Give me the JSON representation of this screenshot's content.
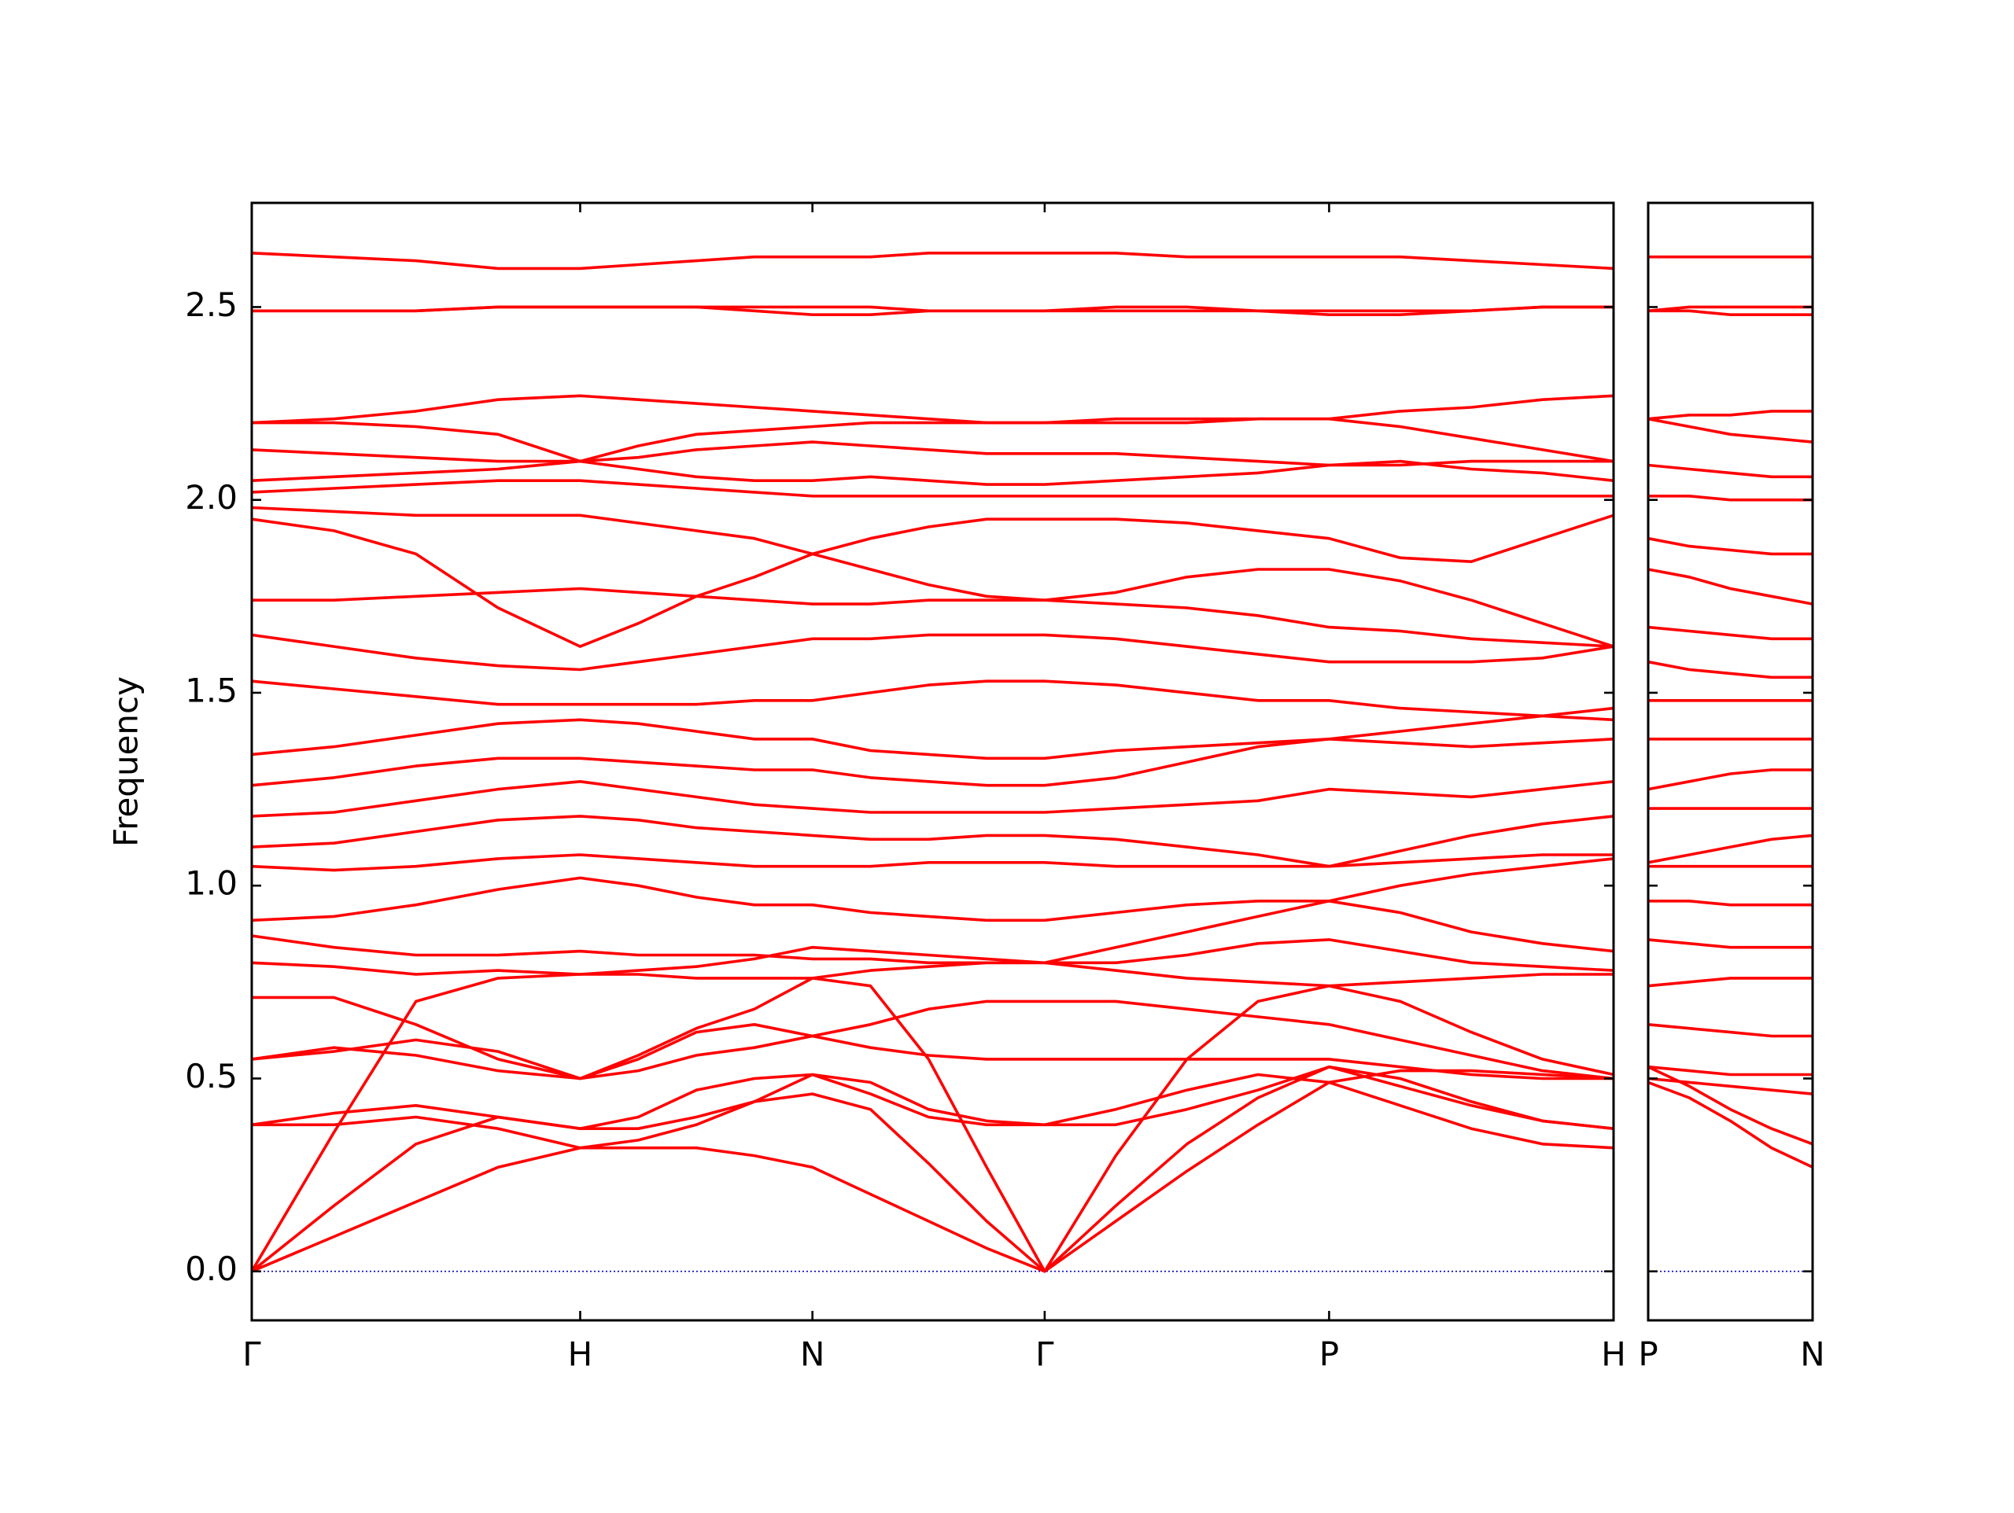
{
  "chart_data": [
    {
      "type": "line",
      "y_label": "Frequency",
      "color": "#ff0000",
      "hline": 0,
      "hline_color": "#0000cc",
      "xlim": [
        0,
        4.1463
      ],
      "ylim": [
        -0.127,
        2.77
      ],
      "xticks": [
        {
          "value": 0,
          "label": "Γ"
        },
        {
          "value": 1,
          "label": "H"
        },
        {
          "value": 1.7071,
          "label": "N"
        },
        {
          "value": 2.4142,
          "label": "Γ"
        },
        {
          "value": 3.2802,
          "label": "P"
        },
        {
          "value": 4.1463,
          "label": "H"
        }
      ],
      "yticks": [
        {
          "value": 0,
          "label": "0.0"
        },
        0.5,
        {
          "value": 1,
          "label": "1.0"
        },
        1.5,
        {
          "value": 2,
          "label": "2.0"
        },
        2.5
      ],
      "x": [
        0,
        0.25,
        0.5,
        0.75,
        1,
        1.1768,
        1.3536,
        1.5303,
        1.7071,
        1.8839,
        2.0607,
        2.2374,
        2.4142,
        2.6307,
        2.8472,
        3.0637,
        3.2802,
        3.4967,
        3.7132,
        3.9298,
        4.1463
      ],
      "series": [
        {
          "values": [
            0,
            0.09,
            0.18,
            0.27,
            0.32,
            0.32,
            0.32,
            0.3,
            0.27,
            0.2,
            0.13,
            0.06,
            0,
            0.13,
            0.26,
            0.38,
            0.49,
            0.43,
            0.37,
            0.33,
            0.32
          ]
        },
        {
          "values": [
            0,
            0.17,
            0.33,
            0.4,
            0.37,
            0.37,
            0.4,
            0.44,
            0.46,
            0.42,
            0.28,
            0.13,
            0,
            0.17,
            0.33,
            0.45,
            0.53,
            0.48,
            0.43,
            0.39,
            0.37
          ]
        },
        {
          "values": [
            0,
            0.36,
            0.7,
            0.76,
            0.77,
            0.77,
            0.76,
            0.76,
            0.76,
            0.74,
            0.55,
            0.27,
            0,
            0.3,
            0.55,
            0.7,
            0.74,
            0.75,
            0.76,
            0.77,
            0.77
          ]
        },
        {
          "values": [
            0.38,
            0.38,
            0.4,
            0.37,
            0.32,
            0.34,
            0.38,
            0.44,
            0.51,
            0.46,
            0.4,
            0.38,
            0.38,
            0.38,
            0.42,
            0.47,
            0.53,
            0.5,
            0.44,
            0.39,
            0.37
          ]
        },
        {
          "values": [
            0.38,
            0.41,
            0.43,
            0.4,
            0.37,
            0.4,
            0.47,
            0.5,
            0.51,
            0.49,
            0.42,
            0.39,
            0.38,
            0.42,
            0.47,
            0.51,
            0.49,
            0.52,
            0.52,
            0.51,
            0.5
          ]
        },
        {
          "values": [
            0.55,
            0.57,
            0.6,
            0.57,
            0.5,
            0.52,
            0.56,
            0.58,
            0.61,
            0.58,
            0.56,
            0.55,
            0.55,
            0.55,
            0.55,
            0.55,
            0.55,
            0.53,
            0.51,
            0.5,
            0.5
          ]
        },
        {
          "values": [
            0.55,
            0.58,
            0.56,
            0.52,
            0.5,
            0.55,
            0.62,
            0.64,
            0.61,
            0.64,
            0.68,
            0.7,
            0.7,
            0.7,
            0.68,
            0.66,
            0.64,
            0.6,
            0.56,
            0.52,
            0.5
          ]
        },
        {
          "values": [
            0.71,
            0.71,
            0.64,
            0.55,
            0.5,
            0.56,
            0.63,
            0.68,
            0.76,
            0.78,
            0.79,
            0.8,
            0.8,
            0.78,
            0.76,
            0.75,
            0.74,
            0.7,
            0.62,
            0.55,
            0.51
          ]
        },
        {
          "values": [
            0.8,
            0.79,
            0.77,
            0.78,
            0.77,
            0.78,
            0.79,
            0.81,
            0.84,
            0.83,
            0.82,
            0.81,
            0.8,
            0.8,
            0.82,
            0.85,
            0.86,
            0.83,
            0.8,
            0.79,
            0.78
          ]
        },
        {
          "values": [
            0.87,
            0.84,
            0.82,
            0.82,
            0.83,
            0.82,
            0.82,
            0.82,
            0.81,
            0.81,
            0.8,
            0.8,
            0.8,
            0.84,
            0.88,
            0.92,
            0.96,
            0.93,
            0.88,
            0.85,
            0.83
          ]
        },
        {
          "values": [
            0.91,
            0.92,
            0.95,
            0.99,
            1.02,
            1.0,
            0.97,
            0.95,
            0.95,
            0.93,
            0.92,
            0.91,
            0.91,
            0.93,
            0.95,
            0.96,
            0.96,
            1.0,
            1.03,
            1.05,
            1.07
          ]
        },
        {
          "values": [
            1.05,
            1.04,
            1.05,
            1.07,
            1.08,
            1.07,
            1.06,
            1.05,
            1.05,
            1.05,
            1.06,
            1.06,
            1.06,
            1.05,
            1.05,
            1.05,
            1.05,
            1.06,
            1.07,
            1.08,
            1.08
          ]
        },
        {
          "values": [
            1.1,
            1.11,
            1.14,
            1.17,
            1.18,
            1.17,
            1.15,
            1.14,
            1.13,
            1.12,
            1.12,
            1.13,
            1.13,
            1.12,
            1.1,
            1.08,
            1.05,
            1.09,
            1.13,
            1.16,
            1.18
          ]
        },
        {
          "values": [
            1.18,
            1.19,
            1.22,
            1.25,
            1.27,
            1.25,
            1.23,
            1.21,
            1.2,
            1.19,
            1.19,
            1.19,
            1.19,
            1.2,
            1.21,
            1.22,
            1.25,
            1.24,
            1.23,
            1.25,
            1.27
          ]
        },
        {
          "values": [
            1.26,
            1.28,
            1.31,
            1.33,
            1.33,
            1.32,
            1.31,
            1.3,
            1.3,
            1.28,
            1.27,
            1.26,
            1.26,
            1.28,
            1.32,
            1.36,
            1.38,
            1.37,
            1.36,
            1.37,
            1.38
          ]
        },
        {
          "values": [
            1.34,
            1.36,
            1.39,
            1.42,
            1.43,
            1.42,
            1.4,
            1.38,
            1.38,
            1.35,
            1.34,
            1.33,
            1.33,
            1.35,
            1.36,
            1.37,
            1.38,
            1.4,
            1.42,
            1.44,
            1.46
          ]
        },
        {
          "values": [
            1.53,
            1.51,
            1.49,
            1.47,
            1.47,
            1.47,
            1.47,
            1.48,
            1.48,
            1.5,
            1.52,
            1.53,
            1.53,
            1.52,
            1.5,
            1.48,
            1.48,
            1.46,
            1.45,
            1.44,
            1.43
          ]
        },
        {
          "values": [
            1.65,
            1.62,
            1.59,
            1.57,
            1.56,
            1.58,
            1.6,
            1.62,
            1.64,
            1.64,
            1.65,
            1.65,
            1.65,
            1.64,
            1.62,
            1.6,
            1.58,
            1.58,
            1.58,
            1.59,
            1.62
          ]
        },
        {
          "values": [
            1.74,
            1.74,
            1.75,
            1.76,
            1.77,
            1.76,
            1.75,
            1.74,
            1.73,
            1.73,
            1.74,
            1.74,
            1.74,
            1.73,
            1.72,
            1.7,
            1.67,
            1.66,
            1.64,
            1.63,
            1.62
          ]
        },
        {
          "values": [
            1.95,
            1.92,
            1.86,
            1.72,
            1.62,
            1.68,
            1.75,
            1.8,
            1.86,
            1.82,
            1.78,
            1.75,
            1.74,
            1.76,
            1.8,
            1.82,
            1.82,
            1.79,
            1.74,
            1.68,
            1.62
          ]
        },
        {
          "values": [
            1.98,
            1.97,
            1.96,
            1.96,
            1.96,
            1.94,
            1.92,
            1.9,
            1.86,
            1.9,
            1.93,
            1.95,
            1.95,
            1.95,
            1.94,
            1.92,
            1.9,
            1.85,
            1.84,
            1.9,
            1.96
          ]
        },
        {
          "values": [
            2.02,
            2.03,
            2.04,
            2.05,
            2.05,
            2.04,
            2.03,
            2.02,
            2.01,
            2.01,
            2.01,
            2.01,
            2.01,
            2.01,
            2.01,
            2.01,
            2.01,
            2.01,
            2.01,
            2.01,
            2.01
          ]
        },
        {
          "values": [
            2.05,
            2.06,
            2.07,
            2.08,
            2.1,
            2.08,
            2.06,
            2.05,
            2.05,
            2.06,
            2.05,
            2.04,
            2.04,
            2.05,
            2.06,
            2.07,
            2.09,
            2.1,
            2.08,
            2.07,
            2.05
          ]
        },
        {
          "values": [
            2.13,
            2.12,
            2.11,
            2.1,
            2.1,
            2.11,
            2.13,
            2.14,
            2.15,
            2.14,
            2.13,
            2.12,
            2.12,
            2.12,
            2.11,
            2.1,
            2.09,
            2.09,
            2.1,
            2.1,
            2.1
          ]
        },
        {
          "values": [
            2.2,
            2.2,
            2.19,
            2.17,
            2.1,
            2.14,
            2.17,
            2.18,
            2.19,
            2.2,
            2.2,
            2.2,
            2.2,
            2.2,
            2.2,
            2.21,
            2.21,
            2.19,
            2.16,
            2.13,
            2.1
          ]
        },
        {
          "values": [
            2.2,
            2.21,
            2.23,
            2.26,
            2.27,
            2.26,
            2.25,
            2.24,
            2.23,
            2.22,
            2.21,
            2.2,
            2.2,
            2.21,
            2.21,
            2.21,
            2.21,
            2.23,
            2.24,
            2.26,
            2.27
          ]
        },
        {
          "values": [
            2.49,
            2.49,
            2.49,
            2.5,
            2.5,
            2.5,
            2.5,
            2.49,
            2.48,
            2.48,
            2.49,
            2.49,
            2.49,
            2.49,
            2.49,
            2.49,
            2.49,
            2.49,
            2.49,
            2.5,
            2.5
          ]
        },
        {
          "values": [
            2.49,
            2.49,
            2.49,
            2.5,
            2.5,
            2.5,
            2.5,
            2.5,
            2.5,
            2.5,
            2.49,
            2.49,
            2.49,
            2.5,
            2.5,
            2.49,
            2.48,
            2.48,
            2.49,
            2.5,
            2.5
          ]
        },
        {
          "values": [
            2.64,
            2.63,
            2.62,
            2.6,
            2.6,
            2.61,
            2.62,
            2.63,
            2.63,
            2.63,
            2.64,
            2.64,
            2.64,
            2.64,
            2.63,
            2.63,
            2.63,
            2.63,
            2.62,
            2.61,
            2.6
          ]
        }
      ]
    },
    {
      "type": "line",
      "color": "#ff0000",
      "hline": 0,
      "hline_color": "#0000cc",
      "xlim": [
        0,
        0.5
      ],
      "ylim": [
        -0.127,
        2.77
      ],
      "xticks": [
        {
          "value": 0,
          "label": "P"
        },
        {
          "value": 0.5,
          "label": "N"
        }
      ],
      "x": [
        0,
        0.125,
        0.25,
        0.375,
        0.5
      ],
      "series": [
        {
          "values": [
            0.49,
            0.45,
            0.39,
            0.32,
            0.27
          ]
        },
        {
          "values": [
            0.53,
            0.48,
            0.42,
            0.37,
            0.33
          ]
        },
        {
          "values": [
            0.5,
            0.49,
            0.48,
            0.47,
            0.46
          ]
        },
        {
          "values": [
            0.53,
            0.52,
            0.51,
            0.51,
            0.51
          ]
        },
        {
          "values": [
            0.64,
            0.63,
            0.62,
            0.61,
            0.61
          ]
        },
        {
          "values": [
            0.74,
            0.75,
            0.76,
            0.76,
            0.76
          ]
        },
        {
          "values": [
            0.86,
            0.85,
            0.84,
            0.84,
            0.84
          ]
        },
        {
          "values": [
            0.96,
            0.96,
            0.95,
            0.95,
            0.95
          ]
        },
        {
          "values": [
            1.05,
            1.05,
            1.05,
            1.05,
            1.05
          ]
        },
        {
          "values": [
            1.06,
            1.08,
            1.1,
            1.12,
            1.13
          ]
        },
        {
          "values": [
            1.2,
            1.2,
            1.2,
            1.2,
            1.2
          ]
        },
        {
          "values": [
            1.25,
            1.27,
            1.29,
            1.3,
            1.3
          ]
        },
        {
          "values": [
            1.38,
            1.38,
            1.38,
            1.38,
            1.38
          ]
        },
        {
          "values": [
            1.48,
            1.48,
            1.48,
            1.48,
            1.48
          ]
        },
        {
          "values": [
            1.58,
            1.56,
            1.55,
            1.54,
            1.54
          ]
        },
        {
          "values": [
            1.67,
            1.66,
            1.65,
            1.64,
            1.64
          ]
        },
        {
          "values": [
            1.82,
            1.8,
            1.77,
            1.75,
            1.73
          ]
        },
        {
          "values": [
            1.9,
            1.88,
            1.87,
            1.86,
            1.86
          ]
        },
        {
          "values": [
            2.01,
            2.01,
            2.0,
            2.0,
            2.0
          ]
        },
        {
          "values": [
            2.09,
            2.08,
            2.07,
            2.06,
            2.06
          ]
        },
        {
          "values": [
            2.21,
            2.19,
            2.17,
            2.16,
            2.15
          ]
        },
        {
          "values": [
            2.21,
            2.22,
            2.22,
            2.23,
            2.23
          ]
        },
        {
          "values": [
            2.49,
            2.49,
            2.48,
            2.48,
            2.48
          ]
        },
        {
          "values": [
            2.49,
            2.5,
            2.5,
            2.5,
            2.5
          ]
        },
        {
          "values": [
            2.63,
            2.63,
            2.63,
            2.63,
            2.63
          ]
        }
      ]
    }
  ]
}
